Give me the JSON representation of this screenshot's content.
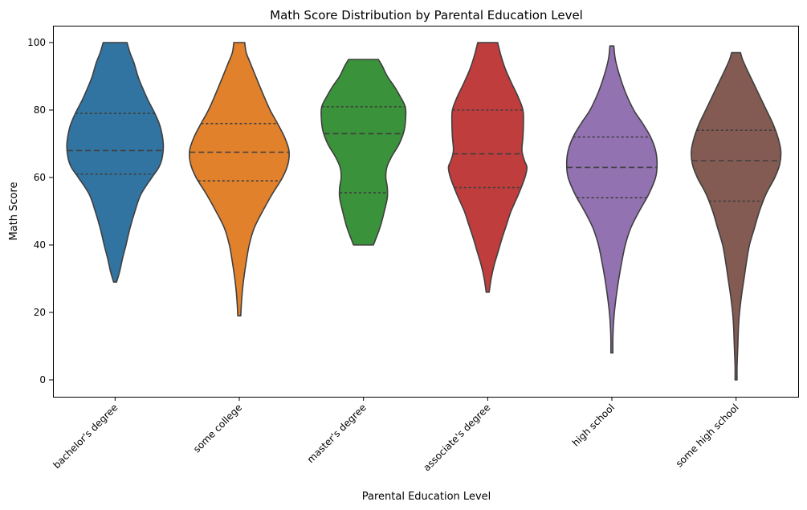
{
  "chart_data": {
    "type": "violin",
    "title": "Math Score Distribution by Parental Education Level",
    "xlabel": "Parental Education Level",
    "ylabel": "Math Score",
    "ylim": [
      -5,
      105
    ],
    "yticks": [
      0,
      20,
      40,
      60,
      80,
      100
    ],
    "grid": false,
    "inner": "quartile",
    "categories": [
      "bachelor's degree",
      "some college",
      "master's degree",
      "associate's degree",
      "high school",
      "some high school"
    ],
    "colors": [
      "#3274a1",
      "#e1812c",
      "#3a923a",
      "#c03d3e",
      "#9372b2",
      "#845b53"
    ],
    "series": [
      {
        "min": 29,
        "max": 100,
        "q1": 61,
        "median": 68,
        "q3": 79,
        "profile": [
          [
            29,
            0.03
          ],
          [
            32,
            0.09
          ],
          [
            36,
            0.15
          ],
          [
            40,
            0.22
          ],
          [
            45,
            0.3
          ],
          [
            50,
            0.4
          ],
          [
            55,
            0.52
          ],
          [
            60,
            0.74
          ],
          [
            63,
            0.88
          ],
          [
            66,
            0.95
          ],
          [
            70,
            0.97
          ],
          [
            75,
            0.91
          ],
          [
            79,
            0.8
          ],
          [
            83,
            0.66
          ],
          [
            87,
            0.54
          ],
          [
            90,
            0.46
          ],
          [
            94,
            0.38
          ],
          [
            97,
            0.3
          ],
          [
            100,
            0.24
          ]
        ]
      },
      {
        "min": 19,
        "max": 100,
        "q1": 59,
        "median": 67.5,
        "q3": 76,
        "profile": [
          [
            19,
            0.03
          ],
          [
            22,
            0.04
          ],
          [
            26,
            0.06
          ],
          [
            30,
            0.09
          ],
          [
            35,
            0.14
          ],
          [
            40,
            0.2
          ],
          [
            45,
            0.3
          ],
          [
            50,
            0.47
          ],
          [
            55,
            0.66
          ],
          [
            60,
            0.87
          ],
          [
            64,
            0.98
          ],
          [
            68,
            1.0
          ],
          [
            72,
            0.91
          ],
          [
            76,
            0.77
          ],
          [
            80,
            0.62
          ],
          [
            85,
            0.47
          ],
          [
            90,
            0.33
          ],
          [
            94,
            0.22
          ],
          [
            97,
            0.14
          ],
          [
            100,
            0.11
          ]
        ]
      },
      {
        "min": 40,
        "max": 95,
        "q1": 55.5,
        "median": 73,
        "q3": 81,
        "profile": [
          [
            40,
            0.2
          ],
          [
            43,
            0.28
          ],
          [
            46,
            0.35
          ],
          [
            50,
            0.42
          ],
          [
            54,
            0.48
          ],
          [
            57,
            0.48
          ],
          [
            60,
            0.45
          ],
          [
            63,
            0.47
          ],
          [
            66,
            0.56
          ],
          [
            70,
            0.72
          ],
          [
            74,
            0.82
          ],
          [
            78,
            0.85
          ],
          [
            81,
            0.84
          ],
          [
            84,
            0.74
          ],
          [
            87,
            0.62
          ],
          [
            90,
            0.48
          ],
          [
            93,
            0.38
          ],
          [
            95,
            0.3
          ]
        ]
      },
      {
        "min": 26,
        "max": 100,
        "q1": 57,
        "median": 67,
        "q3": 80,
        "profile": [
          [
            26,
            0.03
          ],
          [
            30,
            0.07
          ],
          [
            34,
            0.13
          ],
          [
            38,
            0.21
          ],
          [
            42,
            0.29
          ],
          [
            46,
            0.38
          ],
          [
            50,
            0.47
          ],
          [
            55,
            0.62
          ],
          [
            60,
            0.75
          ],
          [
            63,
            0.79
          ],
          [
            65,
            0.74
          ],
          [
            68,
            0.69
          ],
          [
            72,
            0.71
          ],
          [
            76,
            0.72
          ],
          [
            80,
            0.71
          ],
          [
            84,
            0.61
          ],
          [
            88,
            0.48
          ],
          [
            92,
            0.36
          ],
          [
            96,
            0.27
          ],
          [
            100,
            0.2
          ]
        ]
      },
      {
        "min": 8,
        "max": 99,
        "q1": 54,
        "median": 63,
        "q3": 72,
        "profile": [
          [
            8,
            0.02
          ],
          [
            12,
            0.02
          ],
          [
            16,
            0.03
          ],
          [
            20,
            0.05
          ],
          [
            25,
            0.09
          ],
          [
            30,
            0.14
          ],
          [
            35,
            0.2
          ],
          [
            40,
            0.27
          ],
          [
            45,
            0.38
          ],
          [
            50,
            0.55
          ],
          [
            55,
            0.74
          ],
          [
            60,
            0.88
          ],
          [
            64,
            0.91
          ],
          [
            68,
            0.88
          ],
          [
            72,
            0.78
          ],
          [
            76,
            0.62
          ],
          [
            80,
            0.44
          ],
          [
            85,
            0.28
          ],
          [
            90,
            0.16
          ],
          [
            95,
            0.07
          ],
          [
            99,
            0.04
          ]
        ]
      },
      {
        "min": 0,
        "max": 97,
        "q1": 53,
        "median": 65,
        "q3": 74,
        "profile": [
          [
            0,
            0.02
          ],
          [
            4,
            0.02
          ],
          [
            8,
            0.03
          ],
          [
            12,
            0.04
          ],
          [
            16,
            0.05
          ],
          [
            20,
            0.07
          ],
          [
            25,
            0.11
          ],
          [
            30,
            0.16
          ],
          [
            35,
            0.21
          ],
          [
            40,
            0.27
          ],
          [
            45,
            0.37
          ],
          [
            50,
            0.47
          ],
          [
            55,
            0.6
          ],
          [
            60,
            0.78
          ],
          [
            64,
            0.88
          ],
          [
            68,
            0.9
          ],
          [
            72,
            0.84
          ],
          [
            76,
            0.74
          ],
          [
            80,
            0.61
          ],
          [
            84,
            0.48
          ],
          [
            88,
            0.35
          ],
          [
            92,
            0.22
          ],
          [
            95,
            0.13
          ],
          [
            97,
            0.09
          ]
        ]
      }
    ]
  }
}
